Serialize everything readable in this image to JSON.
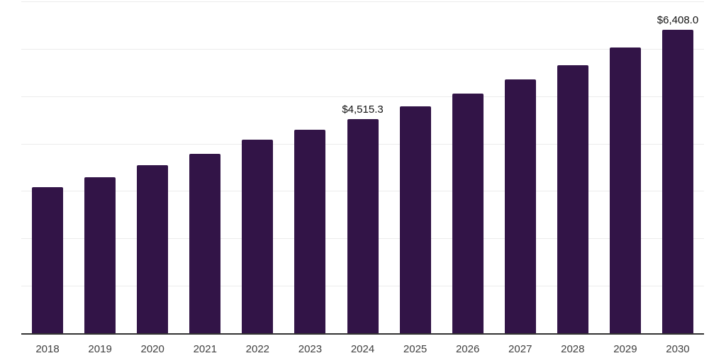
{
  "chart_data": {
    "type": "bar",
    "title": "",
    "xlabel": "",
    "ylabel": "",
    "categories": [
      "2018",
      "2019",
      "2020",
      "2021",
      "2022",
      "2023",
      "2024",
      "2025",
      "2026",
      "2027",
      "2028",
      "2029",
      "2030"
    ],
    "values": [
      3075,
      3290,
      3545,
      3785,
      4085,
      4295,
      4515.3,
      4790,
      5055,
      5355,
      5655,
      6030,
      6408
    ],
    "point_labels": [
      "",
      "",
      "",
      "",
      "",
      "",
      "$4,515.3",
      "",
      "",
      "",
      "",
      "",
      "$6,408.0"
    ],
    "ylim": [
      0,
      7000
    ],
    "gridline_step": 1000,
    "grid": "horizontal gridlines, no y-axis tick labels, drawn behind bars",
    "legend": "none",
    "colors": {
      "bar": "#321447",
      "value_label": "#111111",
      "tick_label": "#3f3f3f",
      "axis_line": "#333333",
      "gridline": "#ececec",
      "background": "#ffffff"
    }
  }
}
